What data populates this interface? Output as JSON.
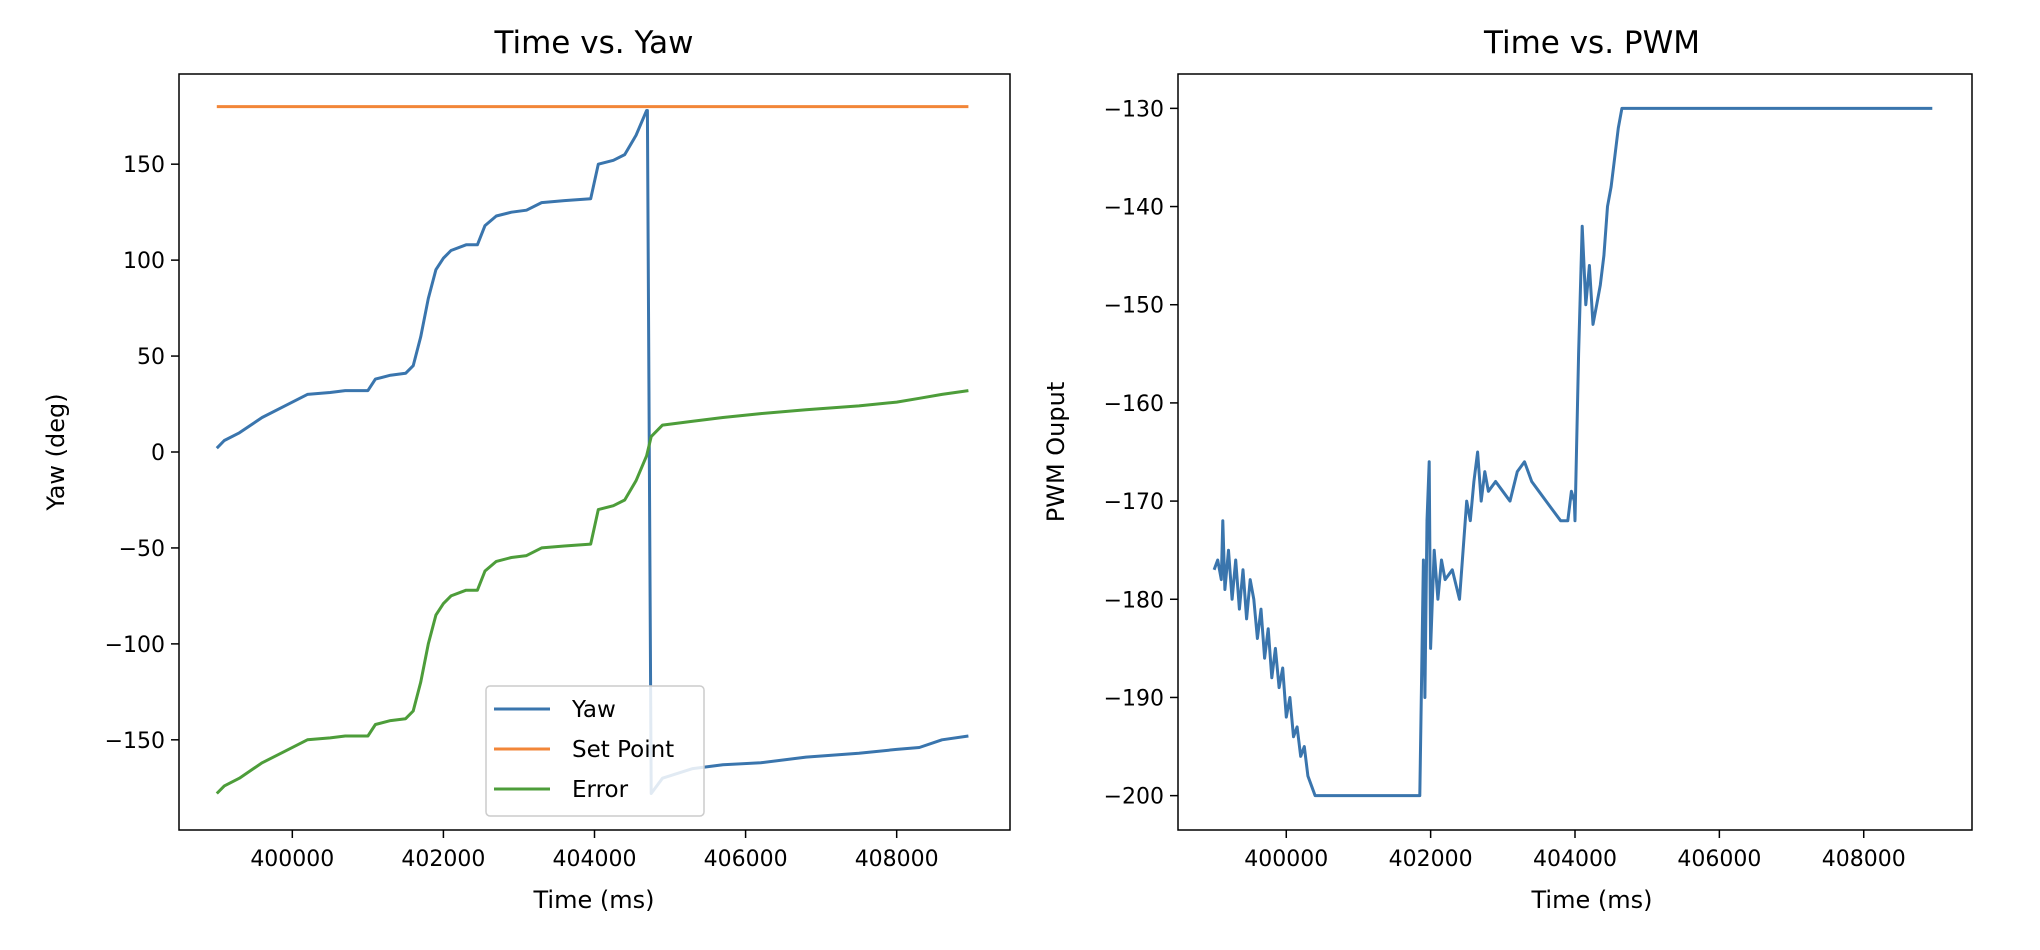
{
  "chart_data": [
    {
      "type": "line",
      "title": "Time vs. Yaw",
      "xlabel": "Time (ms)",
      "ylabel": "Yaw (deg)",
      "xlim": [
        398500,
        409500
      ],
      "ylim": [
        -197,
        197
      ],
      "xticks": [
        400000,
        402000,
        404000,
        406000,
        408000
      ],
      "xtick_labels": [
        "400000",
        "402000",
        "404000",
        "406000",
        "408000"
      ],
      "yticks": [
        150,
        100,
        50,
        0,
        -50,
        -100,
        -150
      ],
      "ytick_labels": [
        "150",
        "100",
        "50",
        "0",
        "−50",
        "−100",
        "−150"
      ],
      "grid": false,
      "legend": {
        "position": "lower center",
        "entries": [
          "Yaw",
          "Set Point",
          "Error"
        ]
      },
      "series": [
        {
          "name": "Yaw",
          "color": "#3a75ad",
          "x": [
            399000,
            399100,
            399300,
            399600,
            399900,
            400200,
            400500,
            400700,
            401000,
            401100,
            401300,
            401500,
            401600,
            401700,
            401800,
            401900,
            402000,
            402100,
            402300,
            402450,
            402550,
            402700,
            402900,
            403100,
            403300,
            403600,
            403950,
            404050,
            404250,
            404400,
            404550,
            404690,
            404700,
            404750,
            404900,
            405300,
            405700,
            406200,
            406800,
            407500,
            408000,
            408300,
            408600,
            408950
          ],
          "values": [
            2,
            6,
            10,
            18,
            24,
            30,
            31,
            32,
            32,
            38,
            40,
            41,
            45,
            60,
            80,
            95,
            101,
            105,
            108,
            108,
            118,
            123,
            125,
            126,
            130,
            131,
            132,
            150,
            152,
            155,
            165,
            178,
            178,
            -178,
            -170,
            -165,
            -163,
            -162,
            -159,
            -157,
            -155,
            -154,
            -150,
            -148
          ]
        },
        {
          "name": "Set Point",
          "color": "#f28638",
          "x": [
            399000,
            408950
          ],
          "values": [
            180,
            180
          ]
        },
        {
          "name": "Error",
          "color": "#4d9d3a",
          "x": [
            399000,
            399100,
            399300,
            399600,
            399900,
            400200,
            400500,
            400700,
            401000,
            401100,
            401300,
            401500,
            401600,
            401700,
            401800,
            401900,
            402000,
            402100,
            402300,
            402450,
            402550,
            402700,
            402900,
            403100,
            403300,
            403600,
            403950,
            404050,
            404250,
            404400,
            404550,
            404690,
            404750,
            404900,
            405300,
            405700,
            406200,
            406800,
            407500,
            408000,
            408300,
            408600,
            408950
          ],
          "values": [
            -178,
            -174,
            -170,
            -162,
            -156,
            -150,
            -149,
            -148,
            -148,
            -142,
            -140,
            -139,
            -135,
            -120,
            -100,
            -85,
            -79,
            -75,
            -72,
            -72,
            -62,
            -57,
            -55,
            -54,
            -50,
            -49,
            -48,
            -30,
            -28,
            -25,
            -15,
            -2,
            8,
            14,
            16,
            18,
            20,
            22,
            24,
            26,
            28,
            30,
            32
          ]
        }
      ]
    },
    {
      "type": "line",
      "title": "Time vs. PWM",
      "xlabel": "Time (ms)",
      "ylabel": "PWM Ouput",
      "xlim": [
        398500,
        409500
      ],
      "ylim": [
        -203.5,
        -126.5
      ],
      "xticks": [
        400000,
        402000,
        404000,
        406000,
        408000
      ],
      "xtick_labels": [
        "400000",
        "402000",
        "404000",
        "406000",
        "408000"
      ],
      "yticks": [
        -130,
        -140,
        -150,
        -160,
        -170,
        -180,
        -190,
        -200
      ],
      "ytick_labels": [
        "−130",
        "−140",
        "−150",
        "−160",
        "−170",
        "−180",
        "−190",
        "−200"
      ],
      "grid": false,
      "series": [
        {
          "name": "PWM",
          "color": "#3a75ad",
          "x": [
            399000,
            399050,
            399100,
            399120,
            399150,
            399200,
            399250,
            399300,
            399350,
            399400,
            399450,
            399500,
            399550,
            399600,
            399650,
            399700,
            399750,
            399800,
            399850,
            399900,
            399950,
            400000,
            400050,
            400100,
            400150,
            400200,
            400250,
            400300,
            400350,
            400400,
            401000,
            401500,
            401850,
            401900,
            401920,
            401950,
            401980,
            402000,
            402050,
            402100,
            402150,
            402200,
            402300,
            402400,
            402500,
            402550,
            402600,
            402650,
            402700,
            402750,
            402800,
            402900,
            403000,
            403100,
            403200,
            403300,
            403400,
            403500,
            403600,
            403700,
            403800,
            403900,
            403950,
            403990,
            404000,
            404050,
            404100,
            404150,
            404200,
            404250,
            404300,
            404350,
            404400,
            404450,
            404500,
            404550,
            404600,
            404650,
            405000,
            406000,
            407000,
            408000,
            408950
          ],
          "values": [
            -177,
            -176,
            -178,
            -172,
            -179,
            -175,
            -180,
            -176,
            -181,
            -177,
            -182,
            -178,
            -180,
            -184,
            -181,
            -186,
            -183,
            -188,
            -185,
            -189,
            -187,
            -192,
            -190,
            -194,
            -193,
            -196,
            -195,
            -198,
            -199,
            -200,
            -200,
            -200,
            -200,
            -176,
            -190,
            -172,
            -166,
            -185,
            -175,
            -180,
            -176,
            -178,
            -177,
            -180,
            -170,
            -172,
            -168,
            -165,
            -170,
            -167,
            -169,
            -168,
            -169,
            -170,
            -167,
            -166,
            -168,
            -169,
            -170,
            -171,
            -172,
            -172,
            -169,
            -170,
            -172,
            -155,
            -142,
            -150,
            -146,
            -152,
            -150,
            -148,
            -145,
            -140,
            -138,
            -135,
            -132,
            -130,
            -130,
            -130,
            -130,
            -130,
            -130
          ]
        }
      ]
    }
  ]
}
